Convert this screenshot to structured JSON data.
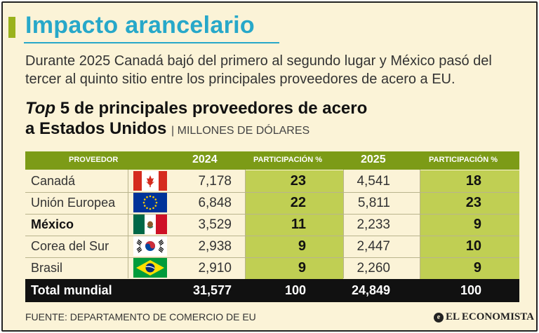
{
  "header": {
    "title": "Impacto arancelario",
    "lead": "Durante 2025 Canadá bajó del primero al segundo lugar y México pasó del tercer al quinto sitio entre los principales proveedores de acero a EU.",
    "subtitle_italic": "Top",
    "subtitle_rest": " 5 de principales proveedores de acero",
    "subtitle_line2": "a Estados Unidos",
    "unit": "MILLONES DE DÓLARES"
  },
  "chart_data": {
    "type": "table",
    "columns": [
      "PROVEEDOR",
      "2024",
      "PARTICIPACIÓN %",
      "2025",
      "PARTICIPACIÓN %"
    ],
    "rows": [
      {
        "name": "Canadá",
        "flag": "canada-flag",
        "v2024": "7,178",
        "p2024": "23",
        "v2025": "4,541",
        "p2025": "18"
      },
      {
        "name": "Unión Europea",
        "flag": "eu-flag",
        "v2024": "6,848",
        "p2024": "22",
        "v2025": "5,811",
        "p2025": "23"
      },
      {
        "name": "México",
        "flag": "mexico-flag",
        "v2024": "3,529",
        "p2024": "11",
        "v2025": "2,233",
        "p2025": "9"
      },
      {
        "name": "Corea del Sur",
        "flag": "south-korea-flag",
        "v2024": "2,938",
        "p2024": "9",
        "v2025": "2,447",
        "p2025": "10"
      },
      {
        "name": "Brasil",
        "flag": "brazil-flag",
        "v2024": "2,910",
        "p2024": "9",
        "v2025": "2,260",
        "p2025": "9"
      }
    ],
    "total": {
      "name": "Total mundial",
      "v2024": "31,577",
      "p2024": "100",
      "v2025": "24,849",
      "p2025": "100"
    }
  },
  "footer": {
    "source": "FUENTE: DEPARTAMENTO DE COMERCIO DE EU",
    "brand": "EL ECONOMISTA",
    "brand_mark": "e"
  },
  "colors": {
    "title": "#27a8c9",
    "header_band": "#7c9b17",
    "share_column": "#c0cf53",
    "background": "#fbf3d7",
    "total_band": "#111111"
  }
}
